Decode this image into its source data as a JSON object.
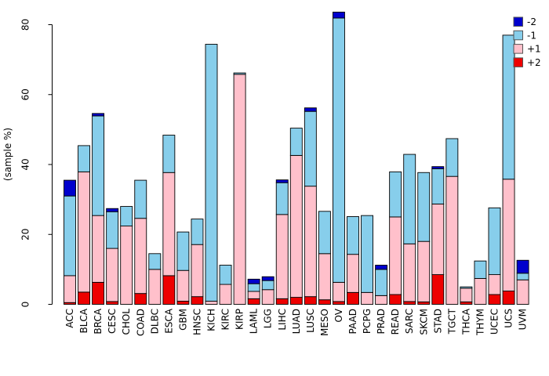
{
  "figure": {
    "background": "#ffffff",
    "bar_border_color": "#000000",
    "axis_color": "#000000"
  },
  "chart_data": {
    "type": "bar",
    "stacked": true,
    "title": "",
    "xlabel": "",
    "ylabel": "(sample %)",
    "ylim": [
      0,
      85
    ],
    "yticks": [
      0,
      20,
      40,
      60,
      80
    ],
    "grid": false,
    "legend_position": "top-right",
    "legend_order": [
      "-2",
      "-1",
      "+1",
      "+2"
    ],
    "stack_order_bottom_to_top": [
      "+2",
      "+1",
      "-1",
      "-2"
    ],
    "categories": [
      "ACC",
      "BLCA",
      "BRCA",
      "CESC",
      "CHOL",
      "COAD",
      "DLBC",
      "ESCA",
      "GBM",
      "HNSC",
      "KICH",
      "KIRC",
      "KIRP",
      "LAML",
      "LGG",
      "LIHC",
      "LUAD",
      "LUSC",
      "MESO",
      "OV",
      "PAAD",
      "PCPG",
      "PRAD",
      "READ",
      "SARC",
      "SKCM",
      "STAD",
      "TGCT",
      "THCA",
      "THYM",
      "UCEC",
      "UCS",
      "UVM"
    ],
    "series": [
      {
        "name": "+2",
        "color": "#EE0000",
        "values": [
          0.5,
          3.5,
          6.3,
          0.8,
          0,
          3.1,
          0,
          8.2,
          0.9,
          2.2,
          0,
          0,
          0,
          1.6,
          0,
          1.6,
          2.0,
          2.2,
          1.3,
          0.8,
          3.4,
          0,
          0,
          2.8,
          0.8,
          0.7,
          8.5,
          0,
          0.7,
          0,
          2.8,
          3.8,
          0
        ]
      },
      {
        "name": "+1",
        "color": "#FFC0CB",
        "values": [
          7.7,
          34.4,
          19.1,
          15.2,
          22.4,
          21.5,
          10.0,
          29.5,
          8.8,
          14.9,
          0.9,
          5.7,
          65.8,
          2.1,
          4.2,
          24.1,
          40.6,
          31.6,
          13.2,
          5.5,
          10.9,
          3.4,
          2.5,
          22.2,
          16.5,
          17.3,
          20.2,
          36.6,
          3.9,
          7.4,
          5.7,
          32.0,
          7.0
        ]
      },
      {
        "name": "-1",
        "color": "#87CEEB",
        "values": [
          22.8,
          7.5,
          28.5,
          10.5,
          5.6,
          10.9,
          4.5,
          10.7,
          11.0,
          7.3,
          73.5,
          5.5,
          0.4,
          2.2,
          2.6,
          9.1,
          7.8,
          21.4,
          12.1,
          75.6,
          10.8,
          22.0,
          7.5,
          12.9,
          25.6,
          19.7,
          10.1,
          10.8,
          0.4,
          5.0,
          19.1,
          41.2,
          1.9
        ]
      },
      {
        "name": "-2",
        "color": "#0000CD",
        "values": [
          4.5,
          0,
          0.7,
          0.9,
          0,
          0,
          0,
          0,
          0,
          0,
          0,
          0,
          0,
          1.3,
          1.1,
          0.8,
          0,
          1.0,
          0,
          1.7,
          0,
          0,
          1.2,
          0,
          0,
          0,
          0.6,
          0,
          0,
          0,
          0,
          0,
          3.7
        ]
      }
    ]
  }
}
